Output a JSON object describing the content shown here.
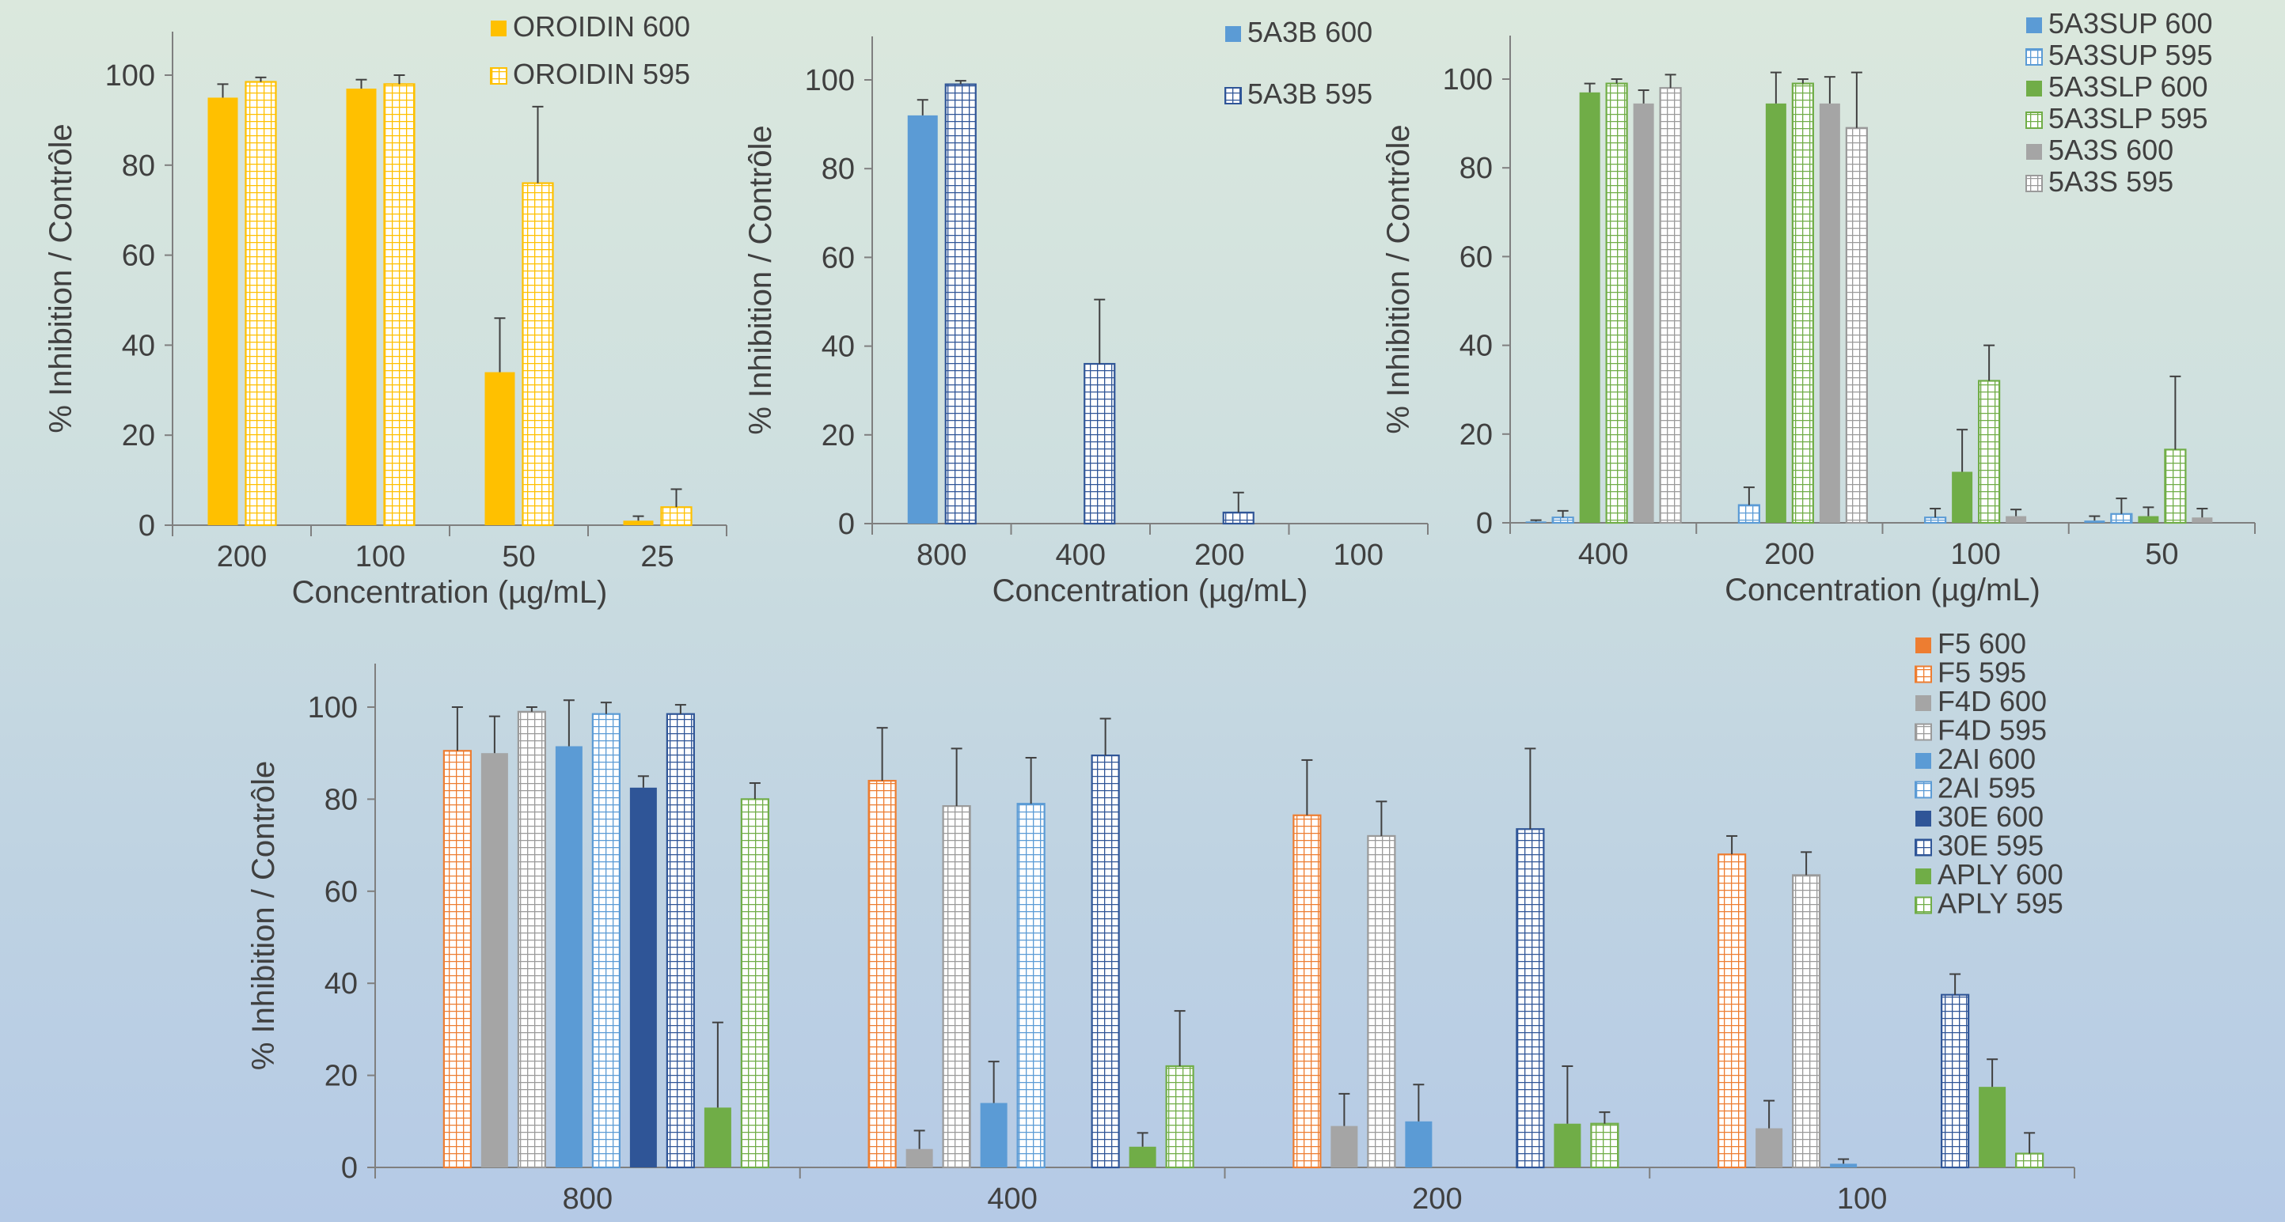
{
  "colors": {
    "orange_yellow": "#FFC000",
    "blue": "#5B9BD5",
    "green": "#70AD47",
    "gray": "#A5A5A5",
    "white_hatch": "#9a9a9a",
    "orange": "#ED7D31",
    "dark_blue": "#2F5597",
    "axis": "#7F7F7F",
    "text": "#404040"
  },
  "chart_data": [
    {
      "id": "oroidin",
      "type": "bar",
      "title": "",
      "xlabel": "Concentration (µg/mL)",
      "ylabel": "% Inhibition / Contrôle",
      "ylim": [
        0,
        100
      ],
      "yticks": [
        0,
        20,
        40,
        60,
        80,
        100
      ],
      "categories": [
        "200",
        "100",
        "50",
        "25"
      ],
      "legend_position": "top-right",
      "series": [
        {
          "name": "OROIDIN 600",
          "color": "#FFC000",
          "pattern": "solid",
          "values": [
            95,
            97,
            34,
            1
          ],
          "errors": [
            3,
            2,
            12,
            1
          ]
        },
        {
          "name": "OROIDIN 595",
          "color": "#FFC000",
          "pattern": "grid",
          "values": [
            98.5,
            98,
            76,
            4
          ],
          "errors": [
            1,
            2,
            17,
            4
          ]
        }
      ]
    },
    {
      "id": "5a3b",
      "type": "bar",
      "title": "",
      "xlabel": "Concentration (µg/mL)",
      "ylabel": "% Inhibition / Contrôle",
      "ylim": [
        0,
        100
      ],
      "yticks": [
        0,
        20,
        40,
        60,
        80,
        100
      ],
      "categories": [
        "800",
        "400",
        "200",
        "100"
      ],
      "legend_position": "top-right",
      "series": [
        {
          "name": "5A3B 600",
          "color": "#5B9BD5",
          "pattern": "solid",
          "values": [
            92,
            0,
            0,
            0
          ],
          "errors": [
            3.5,
            0,
            0,
            0
          ]
        },
        {
          "name": "5A3B 595",
          "color": "#2F5597",
          "pattern": "grid",
          "values": [
            99,
            36,
            2.5,
            0
          ],
          "errors": [
            0.8,
            14.5,
            4.5,
            0
          ]
        }
      ]
    },
    {
      "id": "5a3",
      "type": "bar",
      "title": "",
      "xlabel": "Concentration (µg/mL)",
      "ylabel": "% Inhibition / Contrôle",
      "ylim": [
        0,
        100
      ],
      "yticks": [
        0,
        20,
        40,
        60,
        80,
        100
      ],
      "categories": [
        "400",
        "200",
        "100",
        "50"
      ],
      "legend_position": "top-right",
      "series": [
        {
          "name": "5A3SUP 600",
          "color": "#5B9BD5",
          "pattern": "solid",
          "values": [
            0.3,
            0,
            0,
            0.5
          ],
          "errors": [
            0.3,
            0,
            0,
            1
          ]
        },
        {
          "name": "5A3SUP 595",
          "color": "#5B9BD5",
          "pattern": "grid",
          "values": [
            1.2,
            4,
            1.2,
            2
          ],
          "errors": [
            1.5,
            4,
            2,
            3.5
          ]
        },
        {
          "name": "5A3SLP 600",
          "color": "#70AD47",
          "pattern": "solid",
          "values": [
            97,
            94.5,
            11.5,
            1.5
          ],
          "errors": [
            2,
            7,
            9.5,
            2
          ]
        },
        {
          "name": "5A3SLP 595",
          "color": "#70AD47",
          "pattern": "grid",
          "values": [
            99,
            99,
            32,
            16.5
          ],
          "errors": [
            1,
            1,
            8,
            16.5
          ]
        },
        {
          "name": "5A3S 600",
          "color": "#A5A5A5",
          "pattern": "solid",
          "values": [
            94.5,
            94.5,
            1.5,
            1.2
          ],
          "errors": [
            3,
            6,
            1.5,
            2
          ]
        },
        {
          "name": "5A3S 595",
          "color": "#9a9a9a",
          "pattern": "grid",
          "values": [
            98,
            89,
            0,
            0
          ],
          "errors": [
            3,
            12.5,
            0,
            0
          ]
        }
      ]
    },
    {
      "id": "fractions",
      "type": "bar",
      "title": "",
      "xlabel": "Concentration (µg/mL)",
      "ylabel": "% Inhibition / Contrôle",
      "ylim": [
        0,
        100
      ],
      "yticks": [
        0,
        20,
        40,
        60,
        80,
        100
      ],
      "categories": [
        "800",
        "400",
        "200",
        "100"
      ],
      "legend_position": "top-right",
      "series": [
        {
          "name": "F5 600",
          "color": "#ED7D31",
          "pattern": "solid",
          "values": [
            0,
            0,
            0,
            0
          ],
          "errors": [
            0,
            0,
            0,
            0
          ]
        },
        {
          "name": "F5 595",
          "color": "#ED7D31",
          "pattern": "grid",
          "values": [
            90.5,
            84,
            76.5,
            68
          ],
          "errors": [
            9.5,
            11.5,
            12,
            4
          ]
        },
        {
          "name": "F4D 600",
          "color": "#A5A5A5",
          "pattern": "solid",
          "values": [
            90,
            4,
            9,
            8.5
          ],
          "errors": [
            8,
            4,
            7,
            6
          ]
        },
        {
          "name": "F4D 595",
          "color": "#9a9a9a",
          "pattern": "grid",
          "values": [
            99,
            78.5,
            72,
            63.5
          ],
          "errors": [
            1,
            12.5,
            7.5,
            5
          ]
        },
        {
          "name": "2AI 600",
          "color": "#5B9BD5",
          "pattern": "solid",
          "values": [
            91.5,
            14,
            10,
            0.8
          ],
          "errors": [
            10,
            9,
            8,
            1
          ]
        },
        {
          "name": "2AI 595",
          "color": "#5B9BD5",
          "pattern": "grid",
          "values": [
            98.5,
            79,
            0,
            0
          ],
          "errors": [
            2.5,
            10,
            0,
            0
          ]
        },
        {
          "name": "30E 600",
          "color": "#2F5597",
          "pattern": "solid",
          "values": [
            82.5,
            0,
            0,
            0
          ],
          "errors": [
            2.5,
            0,
            0,
            0
          ]
        },
        {
          "name": "30E 595",
          "color": "#2F5597",
          "pattern": "grid",
          "values": [
            98.5,
            89.5,
            73.5,
            37.5
          ],
          "errors": [
            2,
            8,
            17.5,
            4.5
          ]
        },
        {
          "name": "APLY 600",
          "color": "#70AD47",
          "pattern": "solid",
          "values": [
            13,
            4.5,
            9.5,
            17.5
          ],
          "errors": [
            18.5,
            3,
            12.5,
            6
          ]
        },
        {
          "name": "APLY 595",
          "color": "#70AD47",
          "pattern": "grid",
          "values": [
            80,
            22,
            9.5,
            3
          ],
          "errors": [
            3.5,
            12,
            2.5,
            4.5
          ]
        }
      ]
    }
  ]
}
